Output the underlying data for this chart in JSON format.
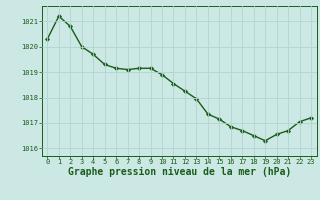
{
  "x": [
    0,
    1,
    2,
    3,
    4,
    5,
    6,
    7,
    8,
    9,
    10,
    11,
    12,
    13,
    14,
    15,
    16,
    17,
    18,
    19,
    20,
    21,
    22,
    23
  ],
  "y": [
    1020.3,
    1021.2,
    1020.8,
    1020.0,
    1019.7,
    1019.3,
    1019.15,
    1019.1,
    1019.15,
    1019.15,
    1018.9,
    1018.55,
    1018.25,
    1017.95,
    1017.35,
    1017.15,
    1016.85,
    1016.7,
    1016.5,
    1016.3,
    1016.55,
    1016.7,
    1017.05,
    1017.2
  ],
  "line_color": "#1a5c1a",
  "marker": "D",
  "marker_size": 2.2,
  "line_width": 1.0,
  "bg_color": "#cce8e4",
  "grid_color": "#b0d4cf",
  "ylim": [
    1015.7,
    1021.6
  ],
  "yticks": [
    1016,
    1017,
    1018,
    1019,
    1020,
    1021
  ],
  "xticks": [
    0,
    1,
    2,
    3,
    4,
    5,
    6,
    7,
    8,
    9,
    10,
    11,
    12,
    13,
    14,
    15,
    16,
    17,
    18,
    19,
    20,
    21,
    22,
    23
  ],
  "xlabel": "Graphe pression niveau de la mer (hPa)",
  "xlabel_color": "#1a5c1a",
  "xlabel_fontsize": 7.0,
  "tick_color": "#1a5c1a",
  "tick_fontsize": 5.0,
  "axis_color": "#1a5c1a",
  "xlim_left": -0.5,
  "xlim_right": 23.5
}
